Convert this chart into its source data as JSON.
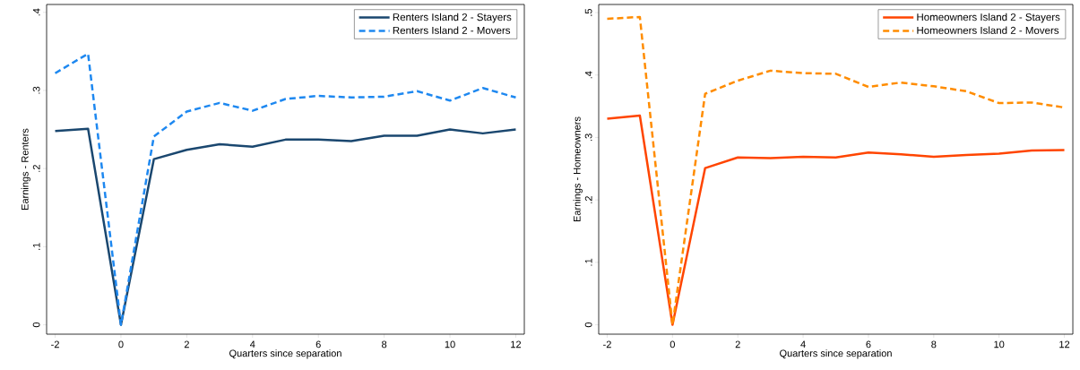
{
  "chart_data": [
    {
      "type": "line",
      "xlabel": "Quarters since separation",
      "ylabel": "Earnings - Renters",
      "x": [
        -2,
        -1,
        0,
        1,
        2,
        3,
        4,
        5,
        6,
        7,
        8,
        9,
        10,
        11,
        12
      ],
      "xlim": [
        -2.26,
        12.26
      ],
      "ylim": [
        -0.012,
        0.41
      ],
      "xticks": [
        -2,
        0,
        2,
        4,
        6,
        8,
        10,
        12
      ],
      "yticks": [
        {
          "value": 0,
          "label": "0"
        },
        {
          "value": 0.1,
          "label": ".1"
        },
        {
          "value": 0.2,
          "label": ".2"
        },
        {
          "value": 0.3,
          "label": ".3"
        },
        {
          "value": 0.4,
          "label": ".4"
        }
      ],
      "legend": "top right",
      "grid": false,
      "series": [
        {
          "name": "Renters Island 2 - Stayers",
          "color": "#1a476f",
          "line_style": "solid",
          "values": [
            0.248,
            0.251,
            0,
            0.212,
            0.224,
            0.231,
            0.228,
            0.237,
            0.237,
            0.235,
            0.242,
            0.242,
            0.25,
            0.245,
            0.25
          ]
        },
        {
          "name": "Renters Island 2 - Movers",
          "color": "#1e88f0",
          "line_style": "dashed",
          "values": [
            0.322,
            0.347,
            0,
            0.241,
            0.273,
            0.284,
            0.274,
            0.289,
            0.293,
            0.291,
            0.292,
            0.299,
            0.287,
            0.303,
            0.291
          ]
        }
      ]
    },
    {
      "type": "line",
      "xlabel": "Quarters since separation",
      "ylabel": "Earnings - Homeowners",
      "x": [
        -2,
        -1,
        0,
        1,
        2,
        3,
        4,
        5,
        6,
        7,
        8,
        9,
        10,
        11,
        12
      ],
      "xlim": [
        -2.26,
        12.26
      ],
      "ylim": [
        -0.015,
        0.513
      ],
      "xticks": [
        -2,
        0,
        2,
        4,
        6,
        8,
        10,
        12
      ],
      "yticks": [
        {
          "value": 0,
          "label": "0"
        },
        {
          "value": 0.1,
          "label": ".1"
        },
        {
          "value": 0.2,
          "label": ".2"
        },
        {
          "value": 0.3,
          "label": ".3"
        },
        {
          "value": 0.4,
          "label": ".4"
        },
        {
          "value": 0.5,
          "label": ".5"
        }
      ],
      "legend": "top right",
      "grid": false,
      "series": [
        {
          "name": "Homeowners Island 2 - Stayers",
          "color": "#ff4500",
          "line_style": "solid",
          "values": [
            0.33,
            0.335,
            0,
            0.251,
            0.268,
            0.267,
            0.269,
            0.268,
            0.276,
            0.273,
            0.269,
            0.272,
            0.274,
            0.279,
            0.28
          ]
        },
        {
          "name": "Homeowners Island 2 - Movers",
          "color": "#ff8c00",
          "line_style": "dashed",
          "values": [
            0.49,
            0.493,
            0,
            0.37,
            0.391,
            0.407,
            0.403,
            0.402,
            0.381,
            0.388,
            0.382,
            0.374,
            0.355,
            0.356,
            0.348
          ]
        }
      ]
    }
  ]
}
